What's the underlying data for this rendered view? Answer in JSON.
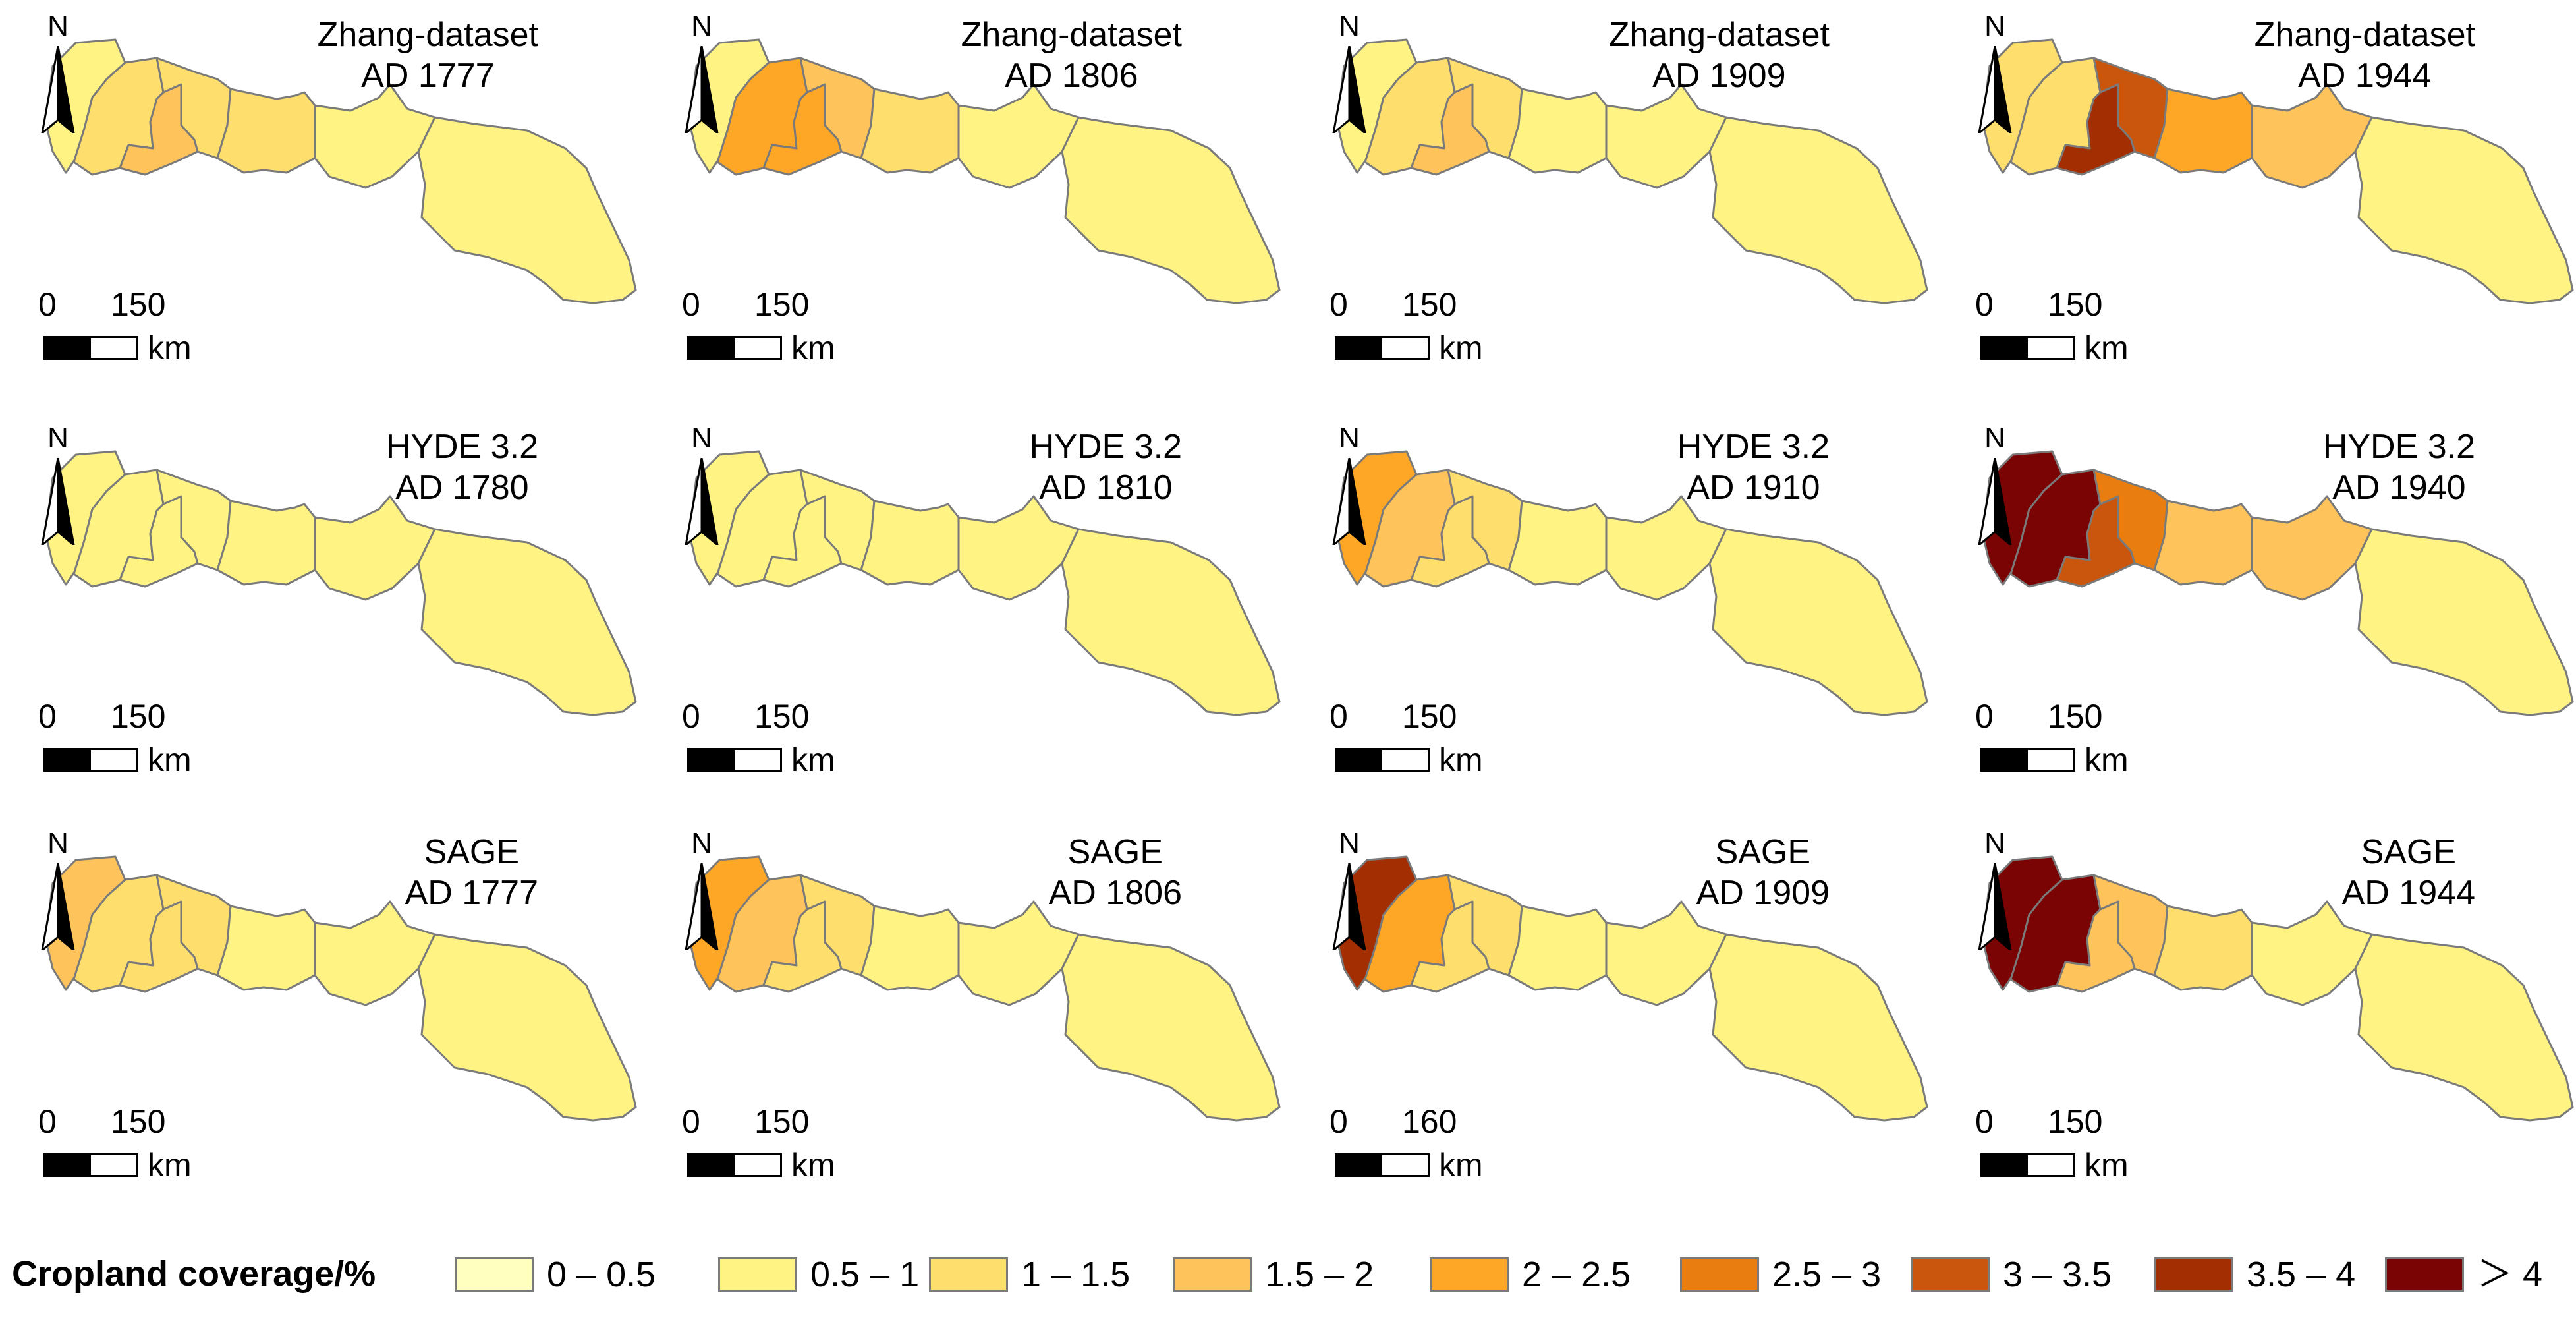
{
  "legend": {
    "title": "Cropland coverage/%",
    "classes": [
      {
        "label": "0 – 0.5",
        "color": "#ffffc0"
      },
      {
        "label": "0.5 – 1",
        "color": "#fef383"
      },
      {
        "label": "1 – 1.5",
        "color": "#fedf6e"
      },
      {
        "label": "1.5 – 2",
        "color": "#fec35a"
      },
      {
        "label": "2 – 2.5",
        "color": "#fea727"
      },
      {
        "label": "2.5 – 3",
        "color": "#e97d0f"
      },
      {
        "label": "3 – 3.5",
        "color": "#c9560c"
      },
      {
        "label": "3.5 – 4",
        "color": "#a22e02"
      },
      {
        "label": "＞ 4",
        "color": "#7a0404"
      }
    ]
  },
  "north_label": "N",
  "scale_unit": "km",
  "panels": [
    {
      "dataset": "Zhang-dataset",
      "year": "AD 1777",
      "scale": [
        "0",
        "150"
      ],
      "classes": [
        1,
        2,
        3,
        2,
        2,
        1,
        1
      ]
    },
    {
      "dataset": "Zhang-dataset",
      "year": "AD 1806",
      "scale": [
        "0",
        "150"
      ],
      "classes": [
        1,
        4,
        4,
        3,
        2,
        1,
        1
      ]
    },
    {
      "dataset": "Zhang-dataset",
      "year": "AD 1909",
      "scale": [
        "0",
        "150"
      ],
      "classes": [
        1,
        2,
        3,
        2,
        1,
        1,
        1
      ]
    },
    {
      "dataset": "Zhang-dataset",
      "year": "AD 1944",
      "scale": [
        "0",
        "150"
      ],
      "classes": [
        2,
        2,
        7,
        6,
        4,
        3,
        1
      ]
    },
    {
      "dataset": "HYDE 3.2",
      "year": "AD 1780",
      "scale": [
        "0",
        "150"
      ],
      "classes": [
        1,
        1,
        1,
        1,
        1,
        1,
        1
      ]
    },
    {
      "dataset": "HYDE 3.2",
      "year": "AD 1810",
      "scale": [
        "0",
        "150"
      ],
      "classes": [
        1,
        1,
        1,
        1,
        1,
        1,
        1
      ]
    },
    {
      "dataset": "HYDE 3.2",
      "year": "AD 1910",
      "scale": [
        "0",
        "150"
      ],
      "classes": [
        4,
        3,
        2,
        2,
        1,
        1,
        1
      ]
    },
    {
      "dataset": "HYDE 3.2",
      "year": "AD 1940",
      "scale": [
        "0",
        "150"
      ],
      "classes": [
        8,
        8,
        6,
        5,
        3,
        3,
        1
      ]
    },
    {
      "dataset": "SAGE",
      "year": "AD 1777",
      "scale": [
        "0",
        "150"
      ],
      "classes": [
        3,
        2,
        2,
        2,
        1,
        1,
        1
      ]
    },
    {
      "dataset": "SAGE",
      "year": "AD 1806",
      "scale": [
        "0",
        "150"
      ],
      "classes": [
        4,
        3,
        2,
        2,
        1,
        1,
        1
      ]
    },
    {
      "dataset": "SAGE",
      "year": "AD 1909",
      "scale": [
        "0",
        "160"
      ],
      "classes": [
        7,
        4,
        2,
        2,
        1,
        1,
        1
      ]
    },
    {
      "dataset": "SAGE",
      "year": "AD 1944",
      "scale": [
        "0",
        "150"
      ],
      "classes": [
        8,
        8,
        3,
        3,
        2,
        1,
        1
      ]
    }
  ]
}
